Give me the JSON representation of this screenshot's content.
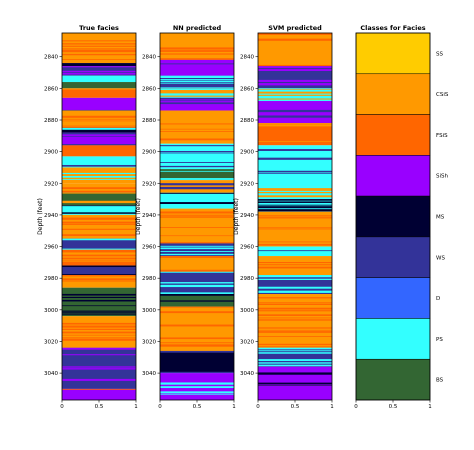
{
  "chart_data": {
    "type": "heatmap",
    "facies_colors": [
      "#FFCC00",
      "#FF9900",
      "#FF6600",
      "#9900FF",
      "#000033",
      "#333399",
      "#3366FF",
      "#33FFFF",
      "#336633"
    ],
    "panels": [
      {
        "title": "True facies",
        "ylabel": "Depth (feet)",
        "ylim": [
          2825,
          3057
        ],
        "y_ticks": [
          "2840",
          "2860",
          "2880",
          "2900",
          "2920",
          "2940",
          "2960",
          "2980",
          "3000",
          "3020",
          "3040"
        ],
        "y_tick_values": [
          2840,
          2860,
          2880,
          2900,
          2920,
          2940,
          2960,
          2980,
          3000,
          3020,
          3040
        ],
        "x_ticks": [
          "0",
          "0.5",
          "1"
        ],
        "xlim": [
          0,
          1
        ],
        "segments": [
          {
            "top": 2825,
            "bottom": 2844,
            "facies": "CSiS",
            "mix": "FSiS"
          },
          {
            "top": 2844,
            "bottom": 2846,
            "facies": "MS"
          },
          {
            "top": 2846,
            "bottom": 2852,
            "facies": "WS",
            "mix": "SiSh"
          },
          {
            "top": 2852,
            "bottom": 2856,
            "facies": "PS",
            "mix": "D"
          },
          {
            "top": 2856,
            "bottom": 2860,
            "facies": "BS"
          },
          {
            "top": 2860,
            "bottom": 2866,
            "facies": "FSiS",
            "mix": "CSiS"
          },
          {
            "top": 2866,
            "bottom": 2874,
            "facies": "SiSh",
            "mix": "WS"
          },
          {
            "top": 2874,
            "bottom": 2885,
            "facies": "CSiS",
            "mix": "FSiS"
          },
          {
            "top": 2885,
            "bottom": 2888,
            "facies": "MS",
            "mix": "PS"
          },
          {
            "top": 2888,
            "bottom": 2896,
            "facies": "SiSh",
            "mix": "WS"
          },
          {
            "top": 2896,
            "bottom": 2903,
            "facies": "FSiS",
            "mix": "CSiS"
          },
          {
            "top": 2903,
            "bottom": 2910,
            "facies": "PS",
            "mix": "WS"
          },
          {
            "top": 2910,
            "bottom": 2920,
            "facies": "CSiS",
            "mix": "PS"
          },
          {
            "top": 2920,
            "bottom": 2926,
            "facies": "CSiS",
            "mix": "FSiS"
          },
          {
            "top": 2926,
            "bottom": 2934,
            "facies": "BS",
            "mix": "CSiS"
          },
          {
            "top": 2934,
            "bottom": 2940,
            "facies": "PS",
            "mix": "MS"
          },
          {
            "top": 2940,
            "bottom": 2955,
            "facies": "CSiS",
            "mix": "FSiS"
          },
          {
            "top": 2955,
            "bottom": 2962,
            "facies": "WS",
            "mix": "PS"
          },
          {
            "top": 2962,
            "bottom": 2972,
            "facies": "FSiS",
            "mix": "CSiS"
          },
          {
            "top": 2972,
            "bottom": 2978,
            "facies": "WS",
            "mix": "MS"
          },
          {
            "top": 2978,
            "bottom": 2986,
            "facies": "CSiS",
            "mix": "FSiS"
          },
          {
            "top": 2986,
            "bottom": 3004,
            "facies": "BS",
            "mix": "MS"
          },
          {
            "top": 3004,
            "bottom": 3024,
            "facies": "CSiS",
            "mix": "FSiS"
          },
          {
            "top": 3024,
            "bottom": 3050,
            "facies": "WS",
            "mix": "SiSh"
          },
          {
            "top": 3050,
            "bottom": 3057,
            "facies": "SiSh",
            "mix": "FSiS"
          }
        ]
      },
      {
        "title": "NN predicted",
        "ylabel": "Depth (feet)",
        "ylim": [
          2825,
          3057
        ],
        "y_ticks": [
          "2840",
          "2860",
          "2880",
          "2900",
          "2920",
          "2940",
          "2960",
          "2980",
          "3000",
          "3020",
          "3040"
        ],
        "y_tick_values": [
          2840,
          2860,
          2880,
          2900,
          2920,
          2940,
          2960,
          2980,
          3000,
          3020,
          3040
        ],
        "x_ticks": [
          "0",
          "0.5",
          "1"
        ],
        "xlim": [
          0,
          1
        ],
        "segments": [
          {
            "top": 2825,
            "bottom": 2842,
            "facies": "CSiS",
            "mix": "FSiS"
          },
          {
            "top": 2842,
            "bottom": 2852,
            "facies": "SiSh",
            "mix": "WS"
          },
          {
            "top": 2852,
            "bottom": 2860,
            "facies": "WS",
            "mix": "PS"
          },
          {
            "top": 2860,
            "bottom": 2866,
            "facies": "CSiS",
            "mix": "PS"
          },
          {
            "top": 2866,
            "bottom": 2874,
            "facies": "SiSh",
            "mix": "WS"
          },
          {
            "top": 2874,
            "bottom": 2895,
            "facies": "CSiS",
            "mix": "FSiS"
          },
          {
            "top": 2895,
            "bottom": 2910,
            "facies": "PS",
            "mix": "WS"
          },
          {
            "top": 2910,
            "bottom": 2918,
            "facies": "BS",
            "mix": "PS"
          },
          {
            "top": 2918,
            "bottom": 2926,
            "facies": "CSiS",
            "mix": "WS"
          },
          {
            "top": 2926,
            "bottom": 2936,
            "facies": "PS",
            "mix": "MS"
          },
          {
            "top": 2936,
            "bottom": 2958,
            "facies": "CSiS",
            "mix": "FSiS"
          },
          {
            "top": 2958,
            "bottom": 2966,
            "facies": "WS",
            "mix": "PS"
          },
          {
            "top": 2966,
            "bottom": 2976,
            "facies": "CSiS",
            "mix": "FSiS"
          },
          {
            "top": 2976,
            "bottom": 2990,
            "facies": "WS",
            "mix": "PS"
          },
          {
            "top": 2990,
            "bottom": 2998,
            "facies": "BS",
            "mix": "MS"
          },
          {
            "top": 2998,
            "bottom": 3026,
            "facies": "CSiS",
            "mix": "FSiS"
          },
          {
            "top": 3026,
            "bottom": 3040,
            "facies": "MS",
            "mix": "WS"
          },
          {
            "top": 3040,
            "bottom": 3057,
            "facies": "SiSh",
            "mix": "PS"
          }
        ]
      },
      {
        "title": "SVM predicted",
        "ylabel": "Depth (feet)",
        "ylim": [
          2825,
          3057
        ],
        "y_ticks": [
          "2840",
          "2860",
          "2880",
          "2900",
          "2920",
          "2940",
          "2960",
          "2980",
          "3000",
          "3020",
          "3040"
        ],
        "y_tick_values": [
          2840,
          2860,
          2880,
          2900,
          2920,
          2940,
          2960,
          2980,
          3000,
          3020,
          3040
        ],
        "x_ticks": [
          "0",
          "0.5",
          "1"
        ],
        "xlim": [
          0,
          1
        ],
        "segments": [
          {
            "top": 2825,
            "bottom": 2846,
            "facies": "CSiS",
            "mix": "FSiS"
          },
          {
            "top": 2846,
            "bottom": 2860,
            "facies": "WS",
            "mix": "SiSh"
          },
          {
            "top": 2860,
            "bottom": 2868,
            "facies": "CSiS",
            "mix": "PS"
          },
          {
            "top": 2868,
            "bottom": 2882,
            "facies": "SiSh",
            "mix": "WS"
          },
          {
            "top": 2882,
            "bottom": 2896,
            "facies": "FSiS",
            "mix": "CSiS"
          },
          {
            "top": 2896,
            "bottom": 2922,
            "facies": "PS",
            "mix": "WS"
          },
          {
            "top": 2922,
            "bottom": 2930,
            "facies": "CSiS",
            "mix": "PS"
          },
          {
            "top": 2930,
            "bottom": 2938,
            "facies": "PS",
            "mix": "MS"
          },
          {
            "top": 2938,
            "bottom": 2960,
            "facies": "CSiS",
            "mix": "FSiS"
          },
          {
            "top": 2960,
            "bottom": 2966,
            "facies": "PS",
            "mix": "WS"
          },
          {
            "top": 2966,
            "bottom": 2978,
            "facies": "CSiS",
            "mix": "FSiS"
          },
          {
            "top": 2978,
            "bottom": 2990,
            "facies": "WS",
            "mix": "PS"
          },
          {
            "top": 2990,
            "bottom": 3024,
            "facies": "CSiS",
            "mix": "FSiS"
          },
          {
            "top": 3024,
            "bottom": 3036,
            "facies": "WS",
            "mix": "PS"
          },
          {
            "top": 3036,
            "bottom": 3048,
            "facies": "SiSh",
            "mix": "MS"
          },
          {
            "top": 3048,
            "bottom": 3057,
            "facies": "SiSh",
            "mix": "FSiS"
          }
        ]
      }
    ],
    "legend_panel": {
      "title": "Classes for Facies",
      "x_ticks": [
        "0",
        "0.5",
        "1"
      ],
      "xlim": [
        0,
        1
      ],
      "classes": [
        "SS",
        "CSiS",
        "FSiS",
        "SiSh",
        "MS",
        "WS",
        "D",
        "PS",
        "BS"
      ]
    }
  }
}
